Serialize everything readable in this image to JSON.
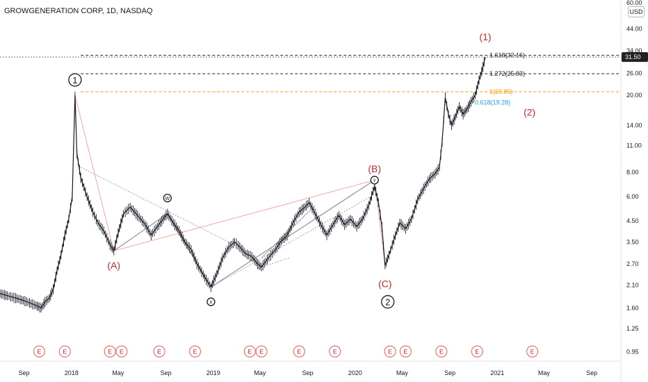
{
  "header": {
    "title": "GROWGENERATION CORP, 1D, NASDAQ",
    "currency": "USD"
  },
  "price_badge": "31.50",
  "colors": {
    "wave": "#c62828",
    "fib_grey": "#222222",
    "fib_orange": "#ff9800",
    "fib_blue": "#2196f3",
    "line_pink": "#f4a6a6",
    "line_grey": "#9e9e9e"
  },
  "chart_data": {
    "type": "line",
    "scale": "log",
    "ylim": [
      0.85,
      62
    ],
    "y_ticks": [
      "60.00",
      "44.00",
      "34.00",
      "26.00",
      "20.00",
      "14.00",
      "11.00",
      "8.00",
      "6.00",
      "4.50",
      "3.50",
      "2.70",
      "2.10",
      "1.60",
      "1.25",
      "0.95"
    ],
    "x_ticks": [
      "Sep",
      "2018",
      "May",
      "Sep",
      "2019",
      "May",
      "Sep",
      "2020",
      "May",
      "Sep",
      "2021",
      "May",
      "Sep"
    ],
    "price_series": [
      [
        "2017-07-01",
        1.9
      ],
      [
        "2017-07-20",
        1.85
      ],
      [
        "2017-08-10",
        1.8
      ],
      [
        "2017-08-30",
        1.75
      ],
      [
        "2017-09-15",
        1.7
      ],
      [
        "2017-10-01",
        1.65
      ],
      [
        "2017-10-15",
        1.6
      ],
      [
        "2017-10-25",
        1.72
      ],
      [
        "2017-11-05",
        1.8
      ],
      [
        "2017-11-15",
        2.0
      ],
      [
        "2017-11-25",
        2.5
      ],
      [
        "2017-12-05",
        3.0
      ],
      [
        "2017-12-15",
        3.8
      ],
      [
        "2017-12-25",
        4.6
      ],
      [
        "2018-01-03",
        6.0
      ],
      [
        "2018-01-10",
        20.0
      ],
      [
        "2018-01-15",
        10.0
      ],
      [
        "2018-01-25",
        7.5
      ],
      [
        "2018-02-10",
        6.0
      ],
      [
        "2018-02-25",
        5.0
      ],
      [
        "2018-03-10",
        4.4
      ],
      [
        "2018-03-25",
        4.0
      ],
      [
        "2018-04-10",
        3.4
      ],
      [
        "2018-04-20",
        3.15
      ],
      [
        "2018-05-01",
        3.9
      ],
      [
        "2018-05-15",
        4.9
      ],
      [
        "2018-06-01",
        5.3
      ],
      [
        "2018-06-20",
        4.8
      ],
      [
        "2018-07-10",
        4.3
      ],
      [
        "2018-07-25",
        3.8
      ],
      [
        "2018-08-10",
        4.2
      ],
      [
        "2018-08-25",
        4.6
      ],
      [
        "2018-09-05",
        4.9
      ],
      [
        "2018-09-20",
        4.4
      ],
      [
        "2018-10-05",
        4.0
      ],
      [
        "2018-10-20",
        3.5
      ],
      [
        "2018-11-05",
        3.2
      ],
      [
        "2018-11-20",
        2.7
      ],
      [
        "2018-12-10",
        2.3
      ],
      [
        "2018-12-26",
        2.05
      ],
      [
        "2019-01-10",
        2.4
      ],
      [
        "2019-01-25",
        2.9
      ],
      [
        "2019-02-10",
        3.3
      ],
      [
        "2019-02-25",
        3.5
      ],
      [
        "2019-03-10",
        3.3
      ],
      [
        "2019-03-25",
        3.05
      ],
      [
        "2019-04-10",
        2.95
      ],
      [
        "2019-04-25",
        2.7
      ],
      [
        "2019-05-05",
        2.6
      ],
      [
        "2019-05-20",
        2.85
      ],
      [
        "2019-06-10",
        3.2
      ],
      [
        "2019-06-25",
        3.55
      ],
      [
        "2019-07-10",
        3.8
      ],
      [
        "2019-07-25",
        4.4
      ],
      [
        "2019-08-10",
        5.0
      ],
      [
        "2019-08-25",
        5.3
      ],
      [
        "2019-09-05",
        5.6
      ],
      [
        "2019-09-20",
        4.9
      ],
      [
        "2019-10-05",
        4.3
      ],
      [
        "2019-10-20",
        3.8
      ],
      [
        "2019-11-05",
        4.3
      ],
      [
        "2019-11-20",
        4.8
      ],
      [
        "2019-12-05",
        4.3
      ],
      [
        "2019-12-20",
        4.6
      ],
      [
        "2020-01-05",
        4.2
      ],
      [
        "2020-01-20",
        4.6
      ],
      [
        "2020-02-05",
        5.4
      ],
      [
        "2020-02-20",
        6.8
      ],
      [
        "2020-03-01",
        5.6
      ],
      [
        "2020-03-10",
        4.2
      ],
      [
        "2020-03-18",
        2.65
      ],
      [
        "2020-03-28",
        3.0
      ],
      [
        "2020-04-10",
        3.6
      ],
      [
        "2020-04-25",
        4.4
      ],
      [
        "2020-05-10",
        4.1
      ],
      [
        "2020-05-25",
        4.6
      ],
      [
        "2020-06-10",
        5.8
      ],
      [
        "2020-06-25",
        6.6
      ],
      [
        "2020-07-10",
        7.4
      ],
      [
        "2020-07-25",
        7.9
      ],
      [
        "2020-08-05",
        8.5
      ],
      [
        "2020-08-12",
        11.5
      ],
      [
        "2020-08-20",
        19.5
      ],
      [
        "2020-08-28",
        16.0
      ],
      [
        "2020-09-05",
        14.0
      ],
      [
        "2020-09-15",
        15.5
      ],
      [
        "2020-09-25",
        17.5
      ],
      [
        "2020-10-05",
        16.0
      ],
      [
        "2020-10-15",
        17.0
      ],
      [
        "2020-10-25",
        18.5
      ],
      [
        "2020-11-05",
        20.0
      ],
      [
        "2020-11-15",
        24.0
      ],
      [
        "2020-11-25",
        28.0
      ],
      [
        "2020-12-01",
        31.5
      ]
    ],
    "wave_labels": [
      {
        "label": "1",
        "circled": true,
        "date": "2018-01-10",
        "price": 24.0,
        "color": "dark"
      },
      {
        "label": "(A)",
        "circled": false,
        "date": "2018-04-20",
        "price": 2.55,
        "color": "red"
      },
      {
        "label": "W",
        "circled": true,
        "date": "2018-09-05",
        "price": 5.9,
        "color": "dark"
      },
      {
        "label": "X",
        "circled": true,
        "date": "2018-12-26",
        "price": 1.72,
        "color": "dark"
      },
      {
        "label": "(B)",
        "circled": false,
        "date": "2020-02-20",
        "price": 8.0,
        "color": "red"
      },
      {
        "label": "Y",
        "circled": true,
        "date": "2020-02-20",
        "price": 7.3,
        "color": "dark"
      },
      {
        "label": "(C)",
        "circled": false,
        "date": "2020-03-18",
        "price": 2.05,
        "color": "red"
      },
      {
        "label": "2",
        "circled": true,
        "date": "2020-03-25",
        "price": 1.72,
        "color": "dark"
      },
      {
        "label": "(1)",
        "circled": false,
        "date": "2020-12-01",
        "price": 38.5,
        "color": "red"
      },
      {
        "label": "(2)",
        "circled": false,
        "date": "2021-03-25",
        "price": 15.7,
        "color": "red"
      }
    ],
    "fib_levels": [
      {
        "label": "1.618(32.16)",
        "price": 32.16,
        "start": "2018-01-25",
        "color": "grey"
      },
      {
        "label": "1.272(25.83)",
        "price": 25.83,
        "start": "2018-01-25",
        "color": "grey"
      },
      {
        "label": "1(20.85)",
        "price": 20.85,
        "start": "2018-01-25",
        "color": "orange"
      },
      {
        "label": "0.618(19.28)",
        "price": 19.28,
        "start": null,
        "color": "blue"
      }
    ],
    "earnings_dates": [
      "2017-10-10",
      "2017-12-15",
      "2018-04-10",
      "2018-05-10",
      "2018-08-15",
      "2018-11-15",
      "2019-04-05",
      "2019-05-05",
      "2019-08-10",
      "2019-11-10",
      "2020-03-31",
      "2020-05-10",
      "2020-08-10",
      "2020-11-10",
      "2021-04-01"
    ],
    "earnings_label": "E",
    "x_range": [
      "2017-07-01",
      "2021-11-15"
    ]
  }
}
